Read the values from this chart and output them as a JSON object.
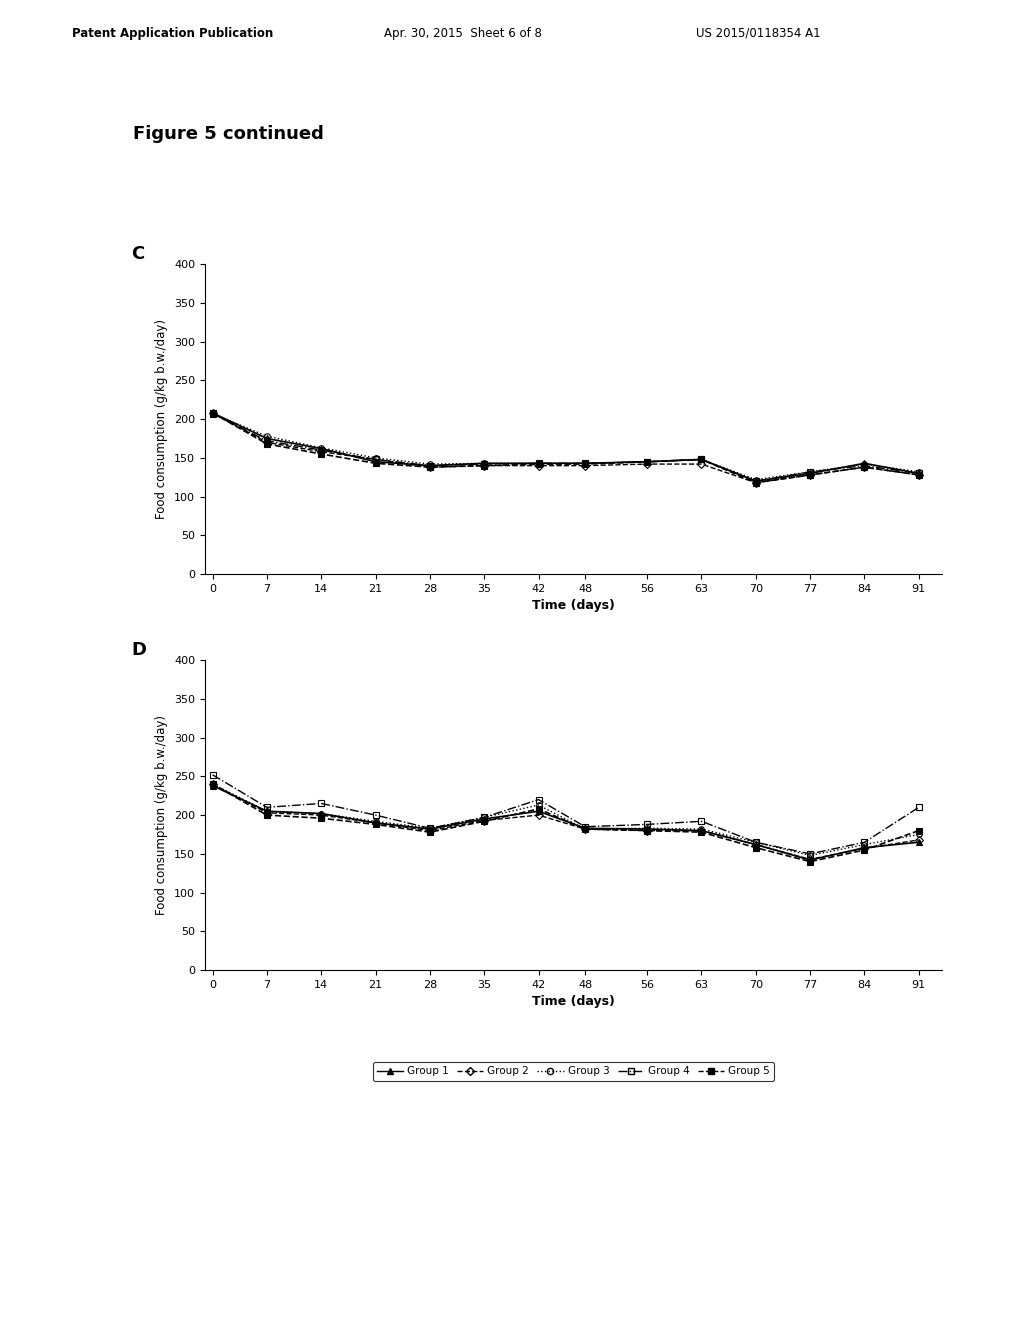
{
  "title": "Figure 5 continued",
  "header_left": "Patent Application Publication",
  "header_mid": "Apr. 30, 2015  Sheet 6 of 8",
  "header_right": "US 2015/0118354 A1",
  "x_ticks": [
    0,
    7,
    14,
    21,
    28,
    35,
    42,
    48,
    56,
    63,
    70,
    77,
    84,
    91
  ],
  "xlabel": "Time (days)",
  "ylabel": "Food consumption (g/kg b.w./day)",
  "ylim": [
    0,
    400
  ],
  "yticks": [
    0,
    50,
    100,
    150,
    200,
    250,
    300,
    350,
    400
  ],
  "panel_C": {
    "label": "C",
    "group1": [
      208,
      175,
      162,
      145,
      140,
      143,
      143,
      143,
      145,
      148,
      120,
      130,
      143,
      130
    ],
    "group2": [
      208,
      170,
      158,
      148,
      138,
      140,
      140,
      140,
      142,
      142,
      118,
      128,
      138,
      128
    ],
    "group3": [
      207,
      178,
      163,
      150,
      142,
      143,
      143,
      143,
      145,
      148,
      122,
      132,
      142,
      132
    ],
    "group4": [
      207,
      172,
      160,
      148,
      140,
      142,
      143,
      143,
      145,
      148,
      120,
      132,
      140,
      130
    ],
    "group5": [
      208,
      168,
      155,
      143,
      138,
      140,
      142,
      142,
      145,
      148,
      118,
      128,
      138,
      128
    ]
  },
  "panel_D": {
    "label": "D",
    "group1": [
      238,
      205,
      202,
      190,
      182,
      195,
      205,
      183,
      182,
      180,
      162,
      142,
      158,
      165
    ],
    "group2": [
      240,
      203,
      200,
      190,
      180,
      193,
      200,
      182,
      180,
      180,
      162,
      143,
      157,
      168
    ],
    "group3": [
      240,
      205,
      202,
      192,
      183,
      197,
      213,
      182,
      183,
      182,
      165,
      148,
      162,
      175
    ],
    "group4": [
      252,
      210,
      215,
      200,
      183,
      197,
      220,
      185,
      188,
      192,
      165,
      150,
      165,
      210
    ],
    "group5": [
      240,
      200,
      196,
      188,
      178,
      192,
      208,
      182,
      180,
      178,
      158,
      140,
      155,
      180
    ]
  },
  "legend_groups": [
    "Group 1",
    "Group 2",
    "Group 3",
    "Group 4",
    "Group 5"
  ],
  "background_color": "#ffffff",
  "line_color": "#000000",
  "line_styles": [
    "-",
    "--",
    ":",
    "-.",
    "--"
  ],
  "markers": [
    "^",
    "D",
    "o",
    "s",
    "s"
  ],
  "markerfacecolors": [
    "black",
    "none",
    "none",
    "none",
    "black"
  ],
  "markersizes": [
    5,
    4,
    4,
    4,
    5
  ],
  "linewidths": [
    1.2,
    1.0,
    1.0,
    1.0,
    1.2
  ]
}
